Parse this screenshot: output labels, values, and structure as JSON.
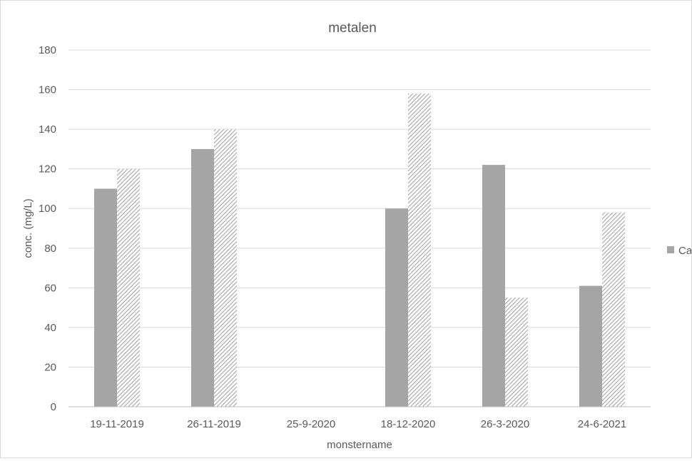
{
  "chart_data": {
    "type": "bar",
    "title": "metalen",
    "xlabel": "monstername",
    "ylabel": "conc. (mg/L)",
    "categories": [
      "19-11-2019",
      "26-11-2019",
      "25-9-2020",
      "18-12-2020",
      "26-3-2020",
      "24-6-2021"
    ],
    "ylim": [
      0,
      180
    ],
    "yticks": [
      0,
      20,
      40,
      60,
      80,
      100,
      120,
      140,
      160,
      180
    ],
    "grid": true,
    "legend_position": "right",
    "series": [
      {
        "name": "Ca",
        "values": [
          110,
          130,
          null,
          100,
          122,
          61
        ],
        "color": "#a5a5a5",
        "fill": "solid"
      },
      {
        "values": [
          120,
          140,
          null,
          158,
          55,
          98
        ],
        "color": "#a5a5a5",
        "fill": "hatched"
      }
    ]
  }
}
